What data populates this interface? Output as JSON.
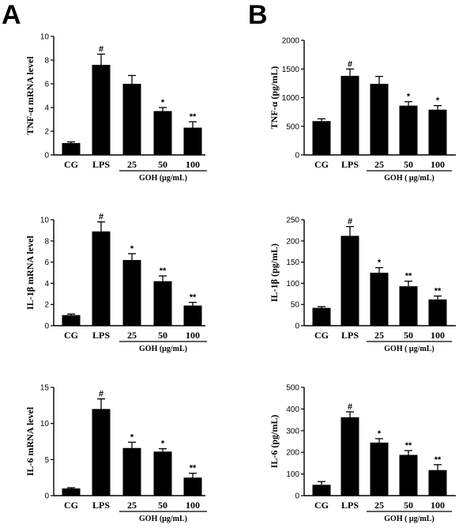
{
  "figure": {
    "panel_labels": [
      "A",
      "B"
    ]
  },
  "chart_data": [
    {
      "type": "bar",
      "panel": "A",
      "ylabel": "TNF-α  mRNA level",
      "categories": [
        "CG",
        "LPS",
        "25",
        "50",
        "100"
      ],
      "values": [
        1.0,
        7.6,
        6.0,
        3.7,
        2.3
      ],
      "errors": [
        0.1,
        0.9,
        0.7,
        0.3,
        0.5
      ],
      "significance": [
        "",
        "#",
        "",
        "*",
        "**"
      ],
      "ylim": [
        0,
        10
      ],
      "yticks": [
        0,
        2,
        4,
        6,
        8,
        10
      ],
      "group_label": "GOH (μg/mL)"
    },
    {
      "type": "bar",
      "panel": "B",
      "ylabel": "TNF-α  (pg/mL)",
      "categories": [
        "CG",
        "LPS",
        "25",
        "50",
        "100"
      ],
      "values": [
        590,
        1380,
        1240,
        860,
        790
      ],
      "errors": [
        40,
        120,
        130,
        70,
        70
      ],
      "significance": [
        "",
        "#",
        "",
        "*",
        "*"
      ],
      "ylim": [
        0,
        2000
      ],
      "yticks": [
        0,
        500,
        1000,
        1500,
        2000
      ],
      "group_label": "GOH ( μg/mL)"
    },
    {
      "type": "bar",
      "panel": "A",
      "ylabel": "IL-1β  mRNA level",
      "categories": [
        "CG",
        "LPS",
        "25",
        "50",
        "100"
      ],
      "values": [
        1.0,
        8.9,
        6.2,
        4.2,
        1.9
      ],
      "errors": [
        0.1,
        0.9,
        0.6,
        0.5,
        0.3
      ],
      "significance": [
        "",
        "#",
        "*",
        "**",
        "**"
      ],
      "ylim": [
        0,
        10
      ],
      "yticks": [
        0,
        2,
        4,
        6,
        8,
        10
      ],
      "group_label": "GOH (μg/mL)"
    },
    {
      "type": "bar",
      "panel": "B",
      "ylabel": "IL-1β  (pg/mL)",
      "categories": [
        "CG",
        "LPS",
        "25",
        "50",
        "100"
      ],
      "values": [
        42,
        212,
        125,
        93,
        62
      ],
      "errors": [
        3,
        22,
        12,
        12,
        8
      ],
      "significance": [
        "",
        "#",
        "*",
        "**",
        "**"
      ],
      "ylim": [
        0,
        250
      ],
      "yticks": [
        0,
        50,
        100,
        150,
        200,
        250
      ],
      "group_label": "GOH ( μg/mL)"
    },
    {
      "type": "bar",
      "panel": "A",
      "ylabel": "IL-6 mRNA level",
      "categories": [
        "CG",
        "LPS",
        "25",
        "50",
        "100"
      ],
      "values": [
        1.0,
        12.0,
        6.6,
        6.1,
        2.5
      ],
      "errors": [
        0.1,
        1.4,
        0.8,
        0.4,
        0.6
      ],
      "significance": [
        "",
        "#",
        "*",
        "*",
        "**"
      ],
      "ylim": [
        0,
        15
      ],
      "yticks": [
        0,
        5,
        10,
        15
      ],
      "group_label": "GOH (μg/mL)"
    },
    {
      "type": "bar",
      "panel": "B",
      "ylabel": "IL-6 (pg/mL)",
      "categories": [
        "CG",
        "LPS",
        "25",
        "50",
        "100"
      ],
      "values": [
        50,
        362,
        245,
        188,
        118
      ],
      "errors": [
        15,
        25,
        18,
        20,
        25
      ],
      "significance": [
        "",
        "#",
        "*",
        "**",
        "**"
      ],
      "ylim": [
        0,
        500
      ],
      "yticks": [
        0,
        100,
        200,
        300,
        400,
        500
      ],
      "group_label": "GOH ( μg/mL)"
    }
  ]
}
